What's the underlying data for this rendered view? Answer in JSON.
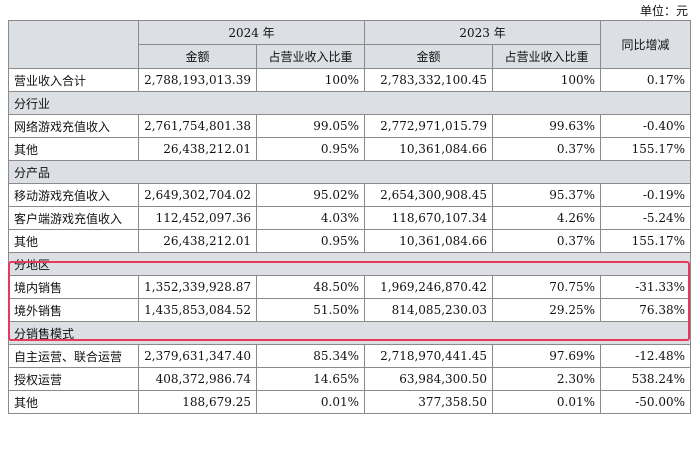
{
  "unit_label": "单位：元",
  "header": {
    "year_2024": "2024 年",
    "year_2023": "2023 年",
    "yoy": "同比增减",
    "amount": "金额",
    "share": "占营业收入比重"
  },
  "total": {
    "label": "营业收入合计",
    "a24": "2,788,193,013.39",
    "p24": "100%",
    "a23": "2,783,332,100.45",
    "p23": "100%",
    "yoy": "0.17%"
  },
  "sections": [
    {
      "title": "分行业",
      "rows": [
        {
          "label": "网络游戏充值收入",
          "a24": "2,761,754,801.38",
          "p24": "99.05%",
          "a23": "2,772,971,015.79",
          "p23": "99.63%",
          "yoy": "-0.40%"
        },
        {
          "label": "其他",
          "a24": "26,438,212.01",
          "p24": "0.95%",
          "a23": "10,361,084.66",
          "p23": "0.37%",
          "yoy": "155.17%"
        }
      ]
    },
    {
      "title": "分产品",
      "rows": [
        {
          "label": "移动游戏充值收入",
          "a24": "2,649,302,704.02",
          "p24": "95.02%",
          "a23": "2,654,300,908.45",
          "p23": "95.37%",
          "yoy": "-0.19%"
        },
        {
          "label": "客户端游戏充值收入",
          "a24": "112,452,097.36",
          "p24": "4.03%",
          "a23": "118,670,107.34",
          "p23": "4.26%",
          "yoy": "-5.24%"
        },
        {
          "label": "其他",
          "a24": "26,438,212.01",
          "p24": "0.95%",
          "a23": "10,361,084.66",
          "p23": "0.37%",
          "yoy": "155.17%"
        }
      ]
    },
    {
      "title": "分地区",
      "rows": [
        {
          "label": "境内销售",
          "a24": "1,352,339,928.87",
          "p24": "48.50%",
          "a23": "1,969,246,870.42",
          "p23": "70.75%",
          "yoy": "-31.33%"
        },
        {
          "label": "境外销售",
          "a24": "1,435,853,084.52",
          "p24": "51.50%",
          "a23": "814,085,230.03",
          "p23": "29.25%",
          "yoy": "76.38%"
        }
      ]
    },
    {
      "title": "分销售模式",
      "rows": [
        {
          "label": "自主运营、联合运营",
          "a24": "2,379,631,347.40",
          "p24": "85.34%",
          "a23": "2,718,970,441.45",
          "p23": "97.69%",
          "yoy": "-12.48%"
        },
        {
          "label": "授权运营",
          "a24": "408,372,986.74",
          "p24": "14.65%",
          "a23": "63,984,300.50",
          "p23": "2.30%",
          "yoy": "538.24%"
        },
        {
          "label": "其他",
          "a24": "188,679.25",
          "p24": "0.01%",
          "a23": "377,358.50",
          "p23": "0.01%",
          "yoy": "-50.00%"
        }
      ]
    }
  ]
}
